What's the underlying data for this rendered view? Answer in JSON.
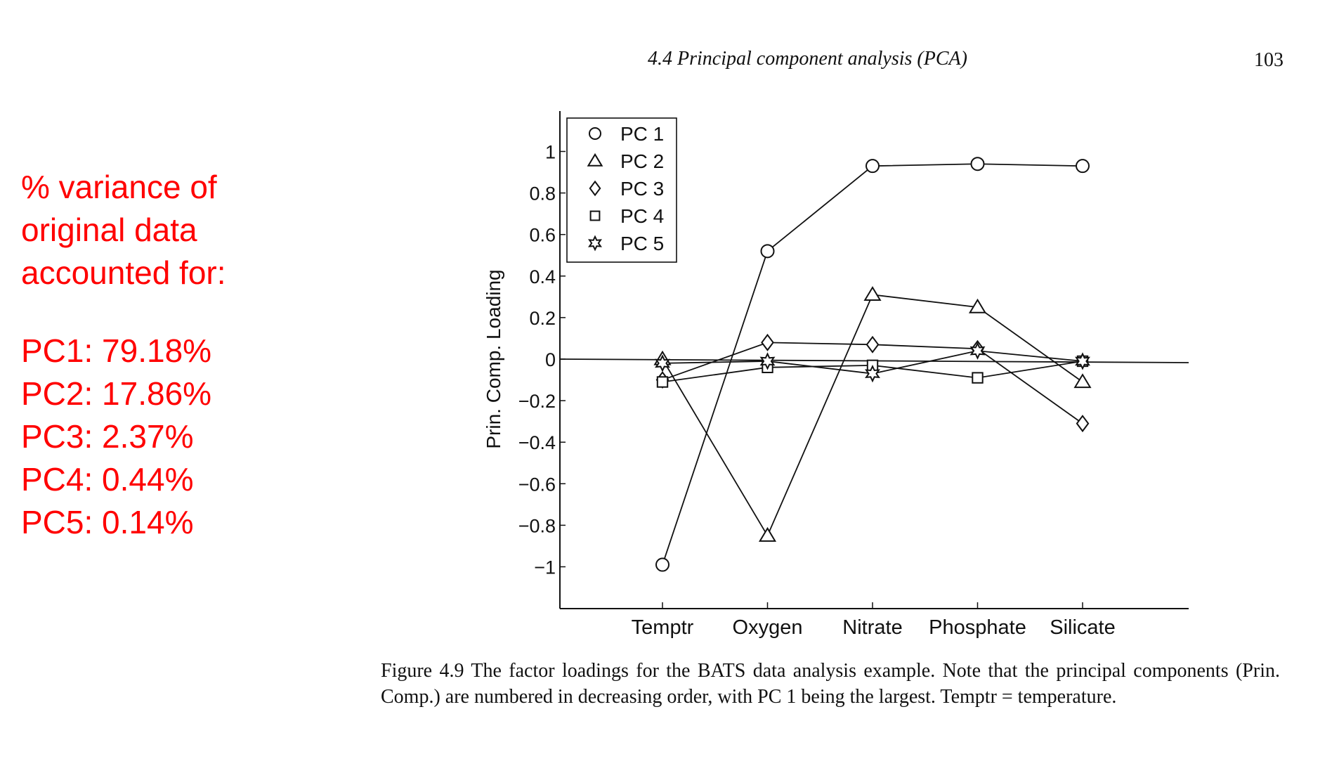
{
  "header": {
    "running_title": "4.4  Principal component analysis (PCA)",
    "page_number": "103"
  },
  "annotation": {
    "color": "#ff0000",
    "heading_lines": [
      "% variance of",
      "original data",
      "accounted for:"
    ],
    "variance": [
      {
        "label": "PC1: 79.18%"
      },
      {
        "label": "PC2: 17.86%"
      },
      {
        "label": "PC3: 2.37%"
      },
      {
        "label": "PC4: 0.44%"
      },
      {
        "label": "PC5: 0.14%"
      }
    ]
  },
  "chart_data": {
    "type": "line",
    "title": "",
    "xlabel": "",
    "ylabel": "Prin. Comp. Loading",
    "categories": [
      "Temptr",
      "Oxygen",
      "Nitrate",
      "Phosphate",
      "Silicate"
    ],
    "ylim": [
      -1.2,
      1.18
    ],
    "yticks": [
      1,
      0.8,
      0.6,
      0.4,
      0.2,
      0,
      -0.2,
      -0.4,
      -0.6,
      -0.8,
      -1
    ],
    "ytick_labels": [
      "1",
      "0.8",
      "0.6",
      "0.4",
      "0.2",
      "0",
      "−0.2",
      "−0.4",
      "−0.6",
      "−0.8",
      "−1"
    ],
    "grid": false,
    "legend_position": "top-left",
    "line_color": "#111111",
    "series": [
      {
        "name": "PC 1",
        "marker": "circle",
        "values": [
          -0.99,
          0.52,
          0.93,
          0.94,
          0.93
        ]
      },
      {
        "name": "PC 2",
        "marker": "triangle",
        "values": [
          0.0,
          -0.85,
          0.31,
          0.25,
          -0.11
        ]
      },
      {
        "name": "PC 3",
        "marker": "diamond",
        "values": [
          -0.1,
          0.08,
          0.07,
          0.05,
          -0.31
        ]
      },
      {
        "name": "PC 4",
        "marker": "square",
        "values": [
          -0.11,
          -0.04,
          -0.03,
          -0.09,
          -0.01
        ]
      },
      {
        "name": "PC 5",
        "marker": "star",
        "values": [
          -0.02,
          -0.01,
          -0.07,
          0.04,
          -0.01
        ]
      }
    ]
  },
  "caption": "Figure 4.9  The factor loadings for the BATS data analysis example. Note that the principal components (Prin. Comp.) are numbered in decreasing order, with PC 1 being the largest. Temptr = temperature."
}
